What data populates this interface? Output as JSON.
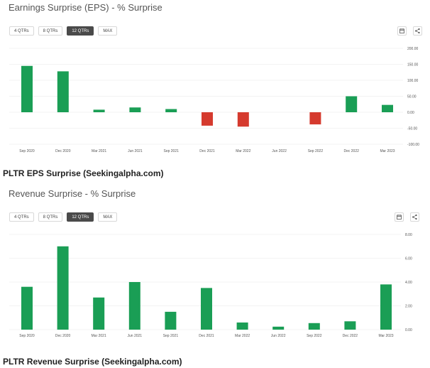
{
  "charts": {
    "eps": {
      "title": "Earnings Surprise (EPS) - % Surprise",
      "caption": "PLTR EPS Surprise (Seekingalpha.com)",
      "icons": [
        "calendar-icon",
        "share-icon"
      ]
    },
    "rev": {
      "title": "Revenue Surprise - % Surprise",
      "caption": "PLTR Revenue Surprise (Seekingalpha.com)",
      "icons": [
        "calendar-icon",
        "share-icon"
      ]
    }
  },
  "range_buttons": [
    "4 QTRs",
    "8 QTRs",
    "12 QTRs",
    "MAX"
  ],
  "active_range": "12 QTRs",
  "colors": {
    "positive": "#1a9e55",
    "negative": "#d53a2e",
    "active_button": "#4a4a4a"
  },
  "chart_data": [
    {
      "type": "bar",
      "title": "Earnings Surprise (EPS) - % Surprise",
      "categories": [
        "Sep 2020",
        "Dec 2020",
        "Mar 2021",
        "Jun 2021",
        "Sep 2021",
        "Dec 2021",
        "Mar 2022",
        "Jun 2022",
        "Sep 2022",
        "Dec 2022",
        "Mar 2023"
      ],
      "values": [
        145,
        128,
        8,
        15,
        10,
        -42,
        -45,
        0,
        -38,
        50,
        23
      ],
      "ylim": [
        -100,
        200
      ],
      "yticks": [
        -100,
        -50,
        0,
        50,
        100,
        150,
        200
      ],
      "ytick_labels": [
        "-100.00",
        "-50.00",
        "0.00",
        "50.00",
        "100.00",
        "150.00",
        "200.00"
      ],
      "grid": true
    },
    {
      "type": "bar",
      "title": "Revenue Surprise - % Surprise",
      "categories": [
        "Sep 2020",
        "Dec 2020",
        "Mar 2021",
        "Jun 2021",
        "Sep 2021",
        "Dec 2021",
        "Mar 2022",
        "Jun 2022",
        "Sep 2022",
        "Dec 2022",
        "Mar 2023"
      ],
      "values": [
        3.6,
        7.0,
        2.7,
        4.0,
        1.5,
        3.5,
        0.6,
        0.25,
        0.55,
        0.7,
        3.8
      ],
      "ylim": [
        0,
        8
      ],
      "yticks": [
        0,
        2,
        4,
        6,
        8
      ],
      "ytick_labels": [
        "0.00",
        "2.00",
        "4.00",
        "6.00",
        "8.00"
      ],
      "grid": true
    }
  ]
}
